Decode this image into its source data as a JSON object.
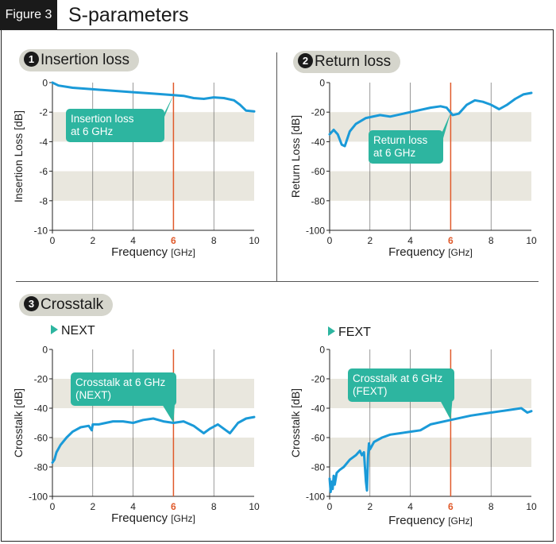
{
  "figure": {
    "tag": "Figure 3",
    "title": "S-parameters"
  },
  "sections": {
    "s1": {
      "num": "1",
      "label": "Insertion loss"
    },
    "s2": {
      "num": "2",
      "label": "Return loss"
    },
    "s3": {
      "num": "3",
      "label": "Crosstalk"
    }
  },
  "subheads": {
    "next": "NEXT",
    "fext": "FEXT"
  },
  "colors": {
    "curve": "#1a9ad8",
    "marker": "#e05a2b",
    "callout": "#2db5a0",
    "band": "#e9e7de",
    "grid": "#555555"
  },
  "chart_data": [
    {
      "id": "insertion",
      "type": "line",
      "xlabel": "Frequency",
      "xunit": "[GHz]",
      "ylabel": "Insertion Loss [dB]",
      "xlim": [
        0,
        10
      ],
      "ylim": [
        -10,
        0
      ],
      "xticks": [
        0,
        2,
        4,
        6,
        8,
        10
      ],
      "yticks": [
        0,
        -2,
        -4,
        -6,
        -8,
        -10
      ],
      "marker_x": 6,
      "callout": [
        "Insertion loss",
        "at 6 GHz"
      ],
      "series": [
        {
          "name": "Insertion loss",
          "x": [
            0,
            0.3,
            1,
            2,
            3,
            4,
            5,
            6,
            6.5,
            7,
            7.5,
            8,
            8.5,
            9,
            9.3,
            9.6,
            10
          ],
          "y": [
            0,
            -0.2,
            -0.35,
            -0.45,
            -0.55,
            -0.65,
            -0.75,
            -0.85,
            -0.9,
            -1.05,
            -1.1,
            -1.0,
            -1.05,
            -1.2,
            -1.5,
            -1.9,
            -1.95
          ]
        }
      ]
    },
    {
      "id": "return",
      "type": "line",
      "xlabel": "Frequency",
      "xunit": "[GHz]",
      "ylabel": "Return Loss [dB]",
      "xlim": [
        0,
        10
      ],
      "ylim": [
        -100,
        0
      ],
      "xticks": [
        0,
        2,
        4,
        6,
        8,
        10
      ],
      "yticks": [
        0,
        -20,
        -40,
        -60,
        -80,
        -100
      ],
      "marker_x": 6,
      "callout": [
        "Return loss",
        "at 6 GHz"
      ],
      "series": [
        {
          "name": "Return loss",
          "x": [
            0,
            0.2,
            0.4,
            0.6,
            0.75,
            1,
            1.3,
            1.8,
            2.5,
            3,
            4,
            5,
            5.5,
            5.8,
            6.1,
            6.4,
            6.8,
            7.2,
            7.6,
            8,
            8.4,
            8.8,
            9.2,
            9.6,
            10
          ],
          "y": [
            -35,
            -32,
            -35,
            -42,
            -43,
            -33,
            -28,
            -24,
            -22,
            -23,
            -20,
            -17,
            -16,
            -17,
            -22,
            -21,
            -15,
            -12,
            -13,
            -15,
            -18,
            -15,
            -11,
            -8,
            -7
          ]
        }
      ]
    },
    {
      "id": "next",
      "type": "line",
      "xlabel": "Frequency",
      "xunit": "[GHz]",
      "ylabel": "Crosstalk [dB]",
      "xlim": [
        0,
        10
      ],
      "ylim": [
        -100,
        0
      ],
      "xticks": [
        0,
        2,
        4,
        6,
        8,
        10
      ],
      "yticks": [
        0,
        -20,
        -40,
        -60,
        -80,
        -100
      ],
      "marker_x": 6,
      "callout": [
        "Crosstalk at 6 GHz",
        "(NEXT)"
      ],
      "series": [
        {
          "name": "NEXT",
          "x": [
            0,
            0.1,
            0.2,
            0.4,
            0.7,
            1,
            1.4,
            1.8,
            1.95,
            2,
            2.3,
            3,
            3.5,
            4,
            4.5,
            5,
            5.5,
            6,
            6.5,
            7,
            7.3,
            7.5,
            7.8,
            8.2,
            8.6,
            8.8,
            9.2,
            9.6,
            10
          ],
          "y": [
            -77,
            -75,
            -70,
            -65,
            -60,
            -56,
            -53,
            -52,
            -55,
            -51,
            -51,
            -49,
            -49,
            -50,
            -48,
            -47,
            -49,
            -50,
            -49,
            -52,
            -55,
            -57,
            -54,
            -51,
            -55,
            -57,
            -50,
            -47,
            -46
          ]
        }
      ]
    },
    {
      "id": "fext",
      "type": "line",
      "xlabel": "Frequency",
      "xunit": "[GHz]",
      "ylabel": "Crosstalk [dB]",
      "xlim": [
        0,
        10
      ],
      "ylim": [
        -100,
        0
      ],
      "xticks": [
        0,
        2,
        4,
        6,
        8,
        10
      ],
      "yticks": [
        0,
        -20,
        -40,
        -60,
        -80,
        -100
      ],
      "marker_x": 6,
      "callout": [
        "Crosstalk at 6 GHz",
        "(FEXT)"
      ],
      "series": [
        {
          "name": "FEXT",
          "x": [
            0,
            0.05,
            0.1,
            0.15,
            0.2,
            0.25,
            0.35,
            0.5,
            0.7,
            1,
            1.3,
            1.5,
            1.6,
            1.7,
            1.8,
            1.85,
            1.9,
            1.95,
            2,
            2.2,
            2.6,
            3,
            3.5,
            4,
            4.5,
            5,
            6,
            7,
            8,
            8.5,
            9,
            9.5,
            9.8,
            10
          ],
          "y": [
            -88,
            -97,
            -90,
            -95,
            -86,
            -92,
            -84,
            -82,
            -80,
            -75,
            -72,
            -69,
            -72,
            -70,
            -90,
            -96,
            -73,
            -64,
            -68,
            -63,
            -60,
            -58,
            -57,
            -56,
            -55,
            -51,
            -48,
            -45,
            -43,
            -42,
            -41,
            -40,
            -43,
            -42
          ]
        }
      ]
    }
  ]
}
